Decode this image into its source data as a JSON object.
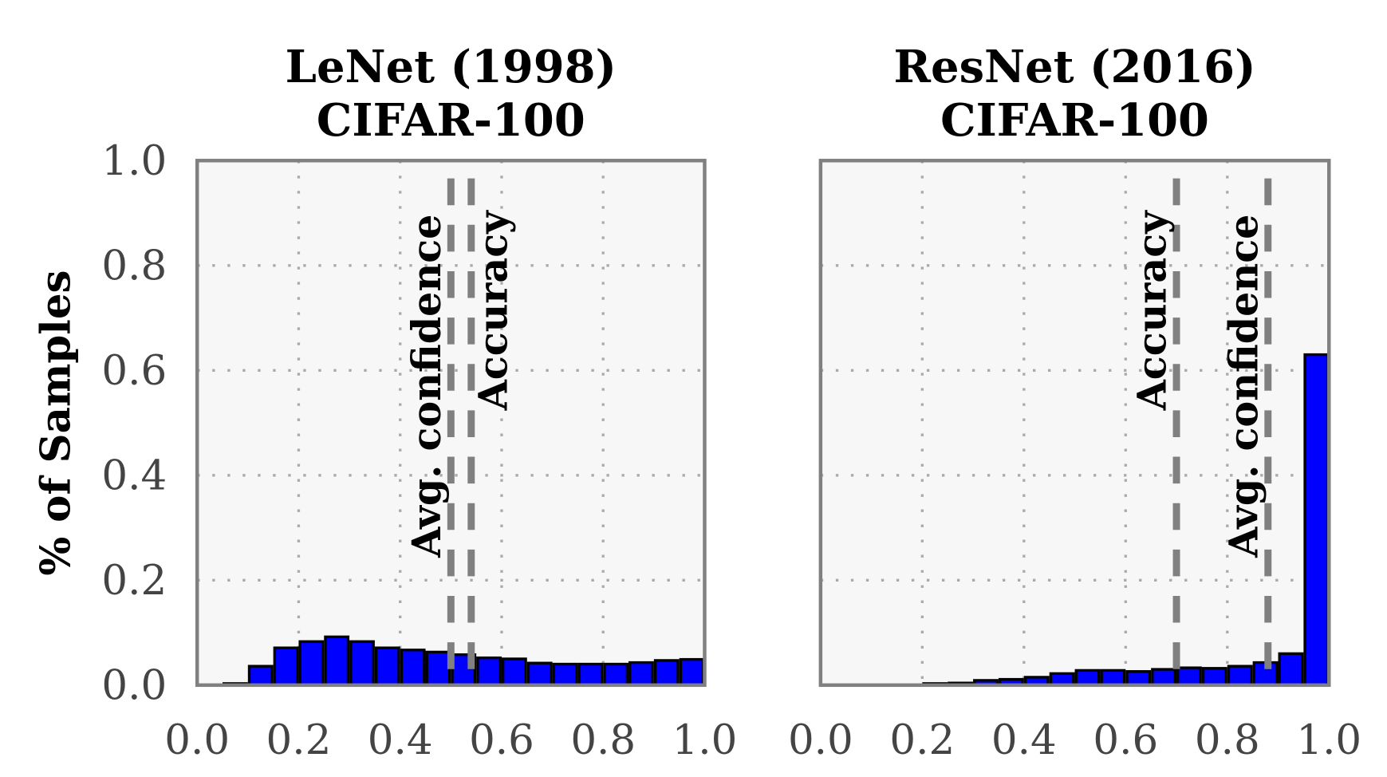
{
  "chart_data": [
    {
      "type": "bar",
      "title": [
        "LeNet (1998)",
        "CIFAR-100"
      ],
      "ylabel": "% of Samples",
      "xlabel": "",
      "xlim": [
        0,
        1
      ],
      "ylim": [
        0,
        1
      ],
      "xticks": [
        "0.0",
        "0.2",
        "0.4",
        "0.6",
        "0.8",
        "1.0"
      ],
      "yticks": [
        "0.0",
        "0.2",
        "0.4",
        "0.6",
        "0.8",
        "1.0"
      ],
      "grid": true,
      "bin_width": 0.05,
      "bin_starts": [
        0,
        0.05,
        0.1,
        0.15,
        0.2,
        0.25,
        0.3,
        0.35,
        0.4,
        0.45,
        0.5,
        0.55,
        0.6,
        0.65,
        0.7,
        0.75,
        0.8,
        0.85,
        0.9,
        0.95
      ],
      "values": [
        0,
        0.003,
        0.036,
        0.071,
        0.083,
        0.092,
        0.083,
        0.071,
        0.067,
        0.063,
        0.058,
        0.052,
        0.05,
        0.042,
        0.04,
        0.04,
        0.04,
        0.043,
        0.047,
        0.049
      ],
      "bar_color": "#0000ff",
      "vlines": [
        {
          "label": "Avg. confidence",
          "x": 0.5,
          "side": "left"
        },
        {
          "label": "Accuracy",
          "x": 0.54,
          "side": "right"
        }
      ]
    },
    {
      "type": "bar",
      "title": [
        "ResNet (2016)",
        "CIFAR-100"
      ],
      "ylabel": "",
      "xlabel": "",
      "xlim": [
        0,
        1
      ],
      "ylim": [
        0,
        1
      ],
      "xticks": [
        "0.0",
        "0.2",
        "0.4",
        "0.6",
        "0.8",
        "1.0"
      ],
      "yticks": [],
      "grid": true,
      "bin_width": 0.05,
      "bin_starts": [
        0,
        0.05,
        0.1,
        0.15,
        0.2,
        0.25,
        0.3,
        0.35,
        0.4,
        0.45,
        0.5,
        0.55,
        0.6,
        0.65,
        0.7,
        0.75,
        0.8,
        0.85,
        0.9,
        0.95
      ],
      "values": [
        0,
        0,
        0,
        0,
        0.003,
        0.004,
        0.009,
        0.011,
        0.015,
        0.022,
        0.028,
        0.028,
        0.026,
        0.03,
        0.033,
        0.032,
        0.036,
        0.043,
        0.06,
        0.63
      ],
      "bar_color": "#0000ff",
      "vlines": [
        {
          "label": "Accuracy",
          "x": 0.7,
          "side": "left"
        },
        {
          "label": "Avg. confidence",
          "x": 0.88,
          "side": "left"
        }
      ]
    }
  ]
}
